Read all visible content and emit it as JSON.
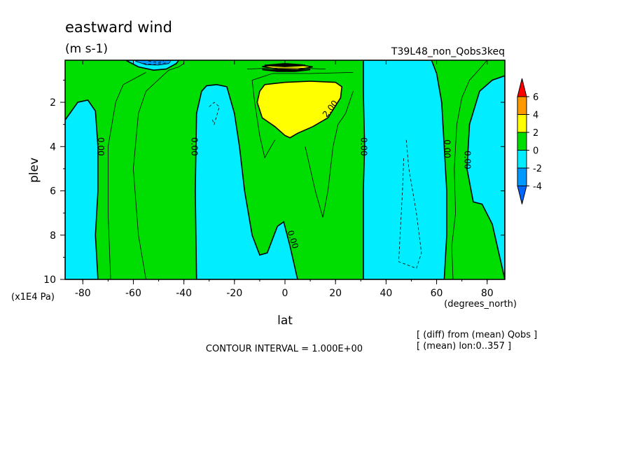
{
  "chart_data": {
    "type": "contour",
    "title": "eastward wind",
    "units": "(m s-1)",
    "run_label": "T39L48_non_Qobs3keq",
    "xlabel": "lat",
    "ylabel": "plev",
    "x_units": "(degrees_north)",
    "y_units": "(x1E4 Pa)",
    "xlim": [
      -87,
      87
    ],
    "ylim": [
      10,
      0.1
    ],
    "x_ticks": [
      -80,
      -60,
      -40,
      -20,
      0,
      20,
      40,
      60,
      80
    ],
    "x_tick_labels": [
      "-80",
      "-60",
      "-40",
      "-20",
      "0",
      "20",
      "40",
      "60",
      "80"
    ],
    "y_ticks": [
      2,
      4,
      6,
      8,
      10
    ],
    "y_tick_labels": [
      "2",
      "4",
      "6",
      "8",
      "10"
    ],
    "contour_interval_text": "CONTOUR INTERVAL = 1.000E+00",
    "notes": [
      "[ (diff) from (mean) Qobs ]",
      "[ (mean) lon:0..357 ]"
    ],
    "colorbar": {
      "levels": [
        -4,
        -2,
        0,
        2,
        4,
        6
      ],
      "labels": [
        "6",
        "4",
        "2",
        "0",
        "-2",
        "-4"
      ],
      "colors": [
        "#ff0000",
        "#ff9900",
        "#ffff00",
        "#00dd00",
        "#00eeff",
        "#0099ff",
        "#0066ff"
      ]
    },
    "contour_labels": [
      "0.00",
      "0.00",
      "0.00",
      "0.00",
      "2.00",
      "0.00",
      "0.00"
    ],
    "regions": [
      {
        "level": "green",
        "color": "#00dd00",
        "points": [
          [
            -87,
            0.1
          ],
          [
            87,
            0.1
          ],
          [
            87,
            10
          ],
          [
            -87,
            10
          ]
        ]
      },
      {
        "level": "cyan",
        "color": "#00eeff",
        "points": [
          [
            -87,
            2.8
          ],
          [
            -82,
            2
          ],
          [
            -78,
            1.9
          ],
          [
            -75,
            2.4
          ],
          [
            -74,
            4
          ],
          [
            -74,
            6
          ],
          [
            -75,
            8
          ],
          [
            -74,
            10
          ],
          [
            -87,
            10
          ]
        ]
      },
      {
        "level": "cyan",
        "color": "#00eeff",
        "points": [
          [
            -35,
            10
          ],
          [
            -35.5,
            6
          ],
          [
            -35,
            2.5
          ],
          [
            -33,
            1.5
          ],
          [
            -31,
            1.25
          ],
          [
            -27,
            1.2
          ],
          [
            -23,
            1.3
          ],
          [
            -20,
            2.5
          ],
          [
            -18,
            4
          ],
          [
            -16,
            6
          ],
          [
            -13,
            8
          ],
          [
            -10,
            8.9
          ],
          [
            -7,
            8.8
          ],
          [
            -3,
            7.6
          ],
          [
            -0.5,
            7.4
          ],
          [
            2,
            8.5
          ],
          [
            5,
            10
          ]
        ]
      },
      {
        "level": "cyan",
        "color": "#00eeff",
        "points": [
          [
            31,
            10
          ],
          [
            31,
            6
          ],
          [
            31.5,
            4
          ],
          [
            31,
            1.5
          ],
          [
            31,
            0.1
          ],
          [
            58,
            0.1
          ],
          [
            60,
            0.7
          ],
          [
            62,
            2
          ],
          [
            63,
            4
          ],
          [
            64,
            6
          ],
          [
            64,
            8
          ],
          [
            63,
            10
          ]
        ]
      },
      {
        "level": "cyan",
        "color": "#00eeff",
        "points": [
          [
            87,
            0.8
          ],
          [
            82,
            1
          ],
          [
            77,
            1.5
          ],
          [
            73,
            3
          ],
          [
            72,
            5
          ],
          [
            74.5,
            6.5
          ],
          [
            78,
            6.6
          ],
          [
            82,
            7.5
          ],
          [
            85,
            9
          ],
          [
            87,
            10
          ]
        ]
      },
      {
        "level": "yellow",
        "color": "#ffff00",
        "points": [
          [
            -11,
            2
          ],
          [
            -10,
            1.5
          ],
          [
            -8,
            1.2
          ],
          [
            0,
            1.1
          ],
          [
            10,
            1.05
          ],
          [
            20,
            1.1
          ],
          [
            22.5,
            1.3
          ],
          [
            22,
            1.8
          ],
          [
            17,
            2.7
          ],
          [
            11,
            3.1
          ],
          [
            5,
            3.4
          ],
          [
            2,
            3.6
          ],
          [
            0,
            3.5
          ],
          [
            -4,
            3.1
          ],
          [
            -9,
            2.7
          ]
        ]
      },
      {
        "level": "cyan",
        "color": "#00eeff",
        "points": [
          [
            -63,
            0.1
          ],
          [
            -58,
            0.4
          ],
          [
            -52,
            0.55
          ],
          [
            -47,
            0.5
          ],
          [
            -43,
            0.25
          ],
          [
            -42,
            0.1
          ]
        ]
      },
      {
        "level": "blue",
        "color": "#0099ff",
        "points": [
          [
            -59,
            0.15
          ],
          [
            -55,
            0.3
          ],
          [
            -50,
            0.32
          ],
          [
            -46,
            0.25
          ],
          [
            -45,
            0.1
          ],
          [
            -58,
            0.1
          ]
        ]
      },
      {
        "level": "yellow",
        "color": "#ffff00",
        "points": [
          [
            -9,
            0.38
          ],
          [
            -3,
            0.3
          ],
          [
            5,
            0.3
          ],
          [
            11,
            0.4
          ],
          [
            5,
            0.52
          ],
          [
            -3,
            0.5
          ]
        ]
      },
      {
        "level": "orange",
        "color": "#ff9900",
        "points": [
          [
            -6,
            0.3
          ],
          [
            0,
            0.24
          ],
          [
            7,
            0.3
          ],
          [
            0,
            0.36
          ]
        ]
      }
    ],
    "solid_lines": [
      [
        [
          -69,
          10
        ],
        [
          -70,
          7
        ],
        [
          -70,
          4
        ],
        [
          -67,
          2
        ],
        [
          -64,
          1.2
        ],
        [
          -55,
          0.65
        ]
      ],
      [
        [
          -55,
          10
        ],
        [
          -58,
          8
        ],
        [
          -60,
          5
        ],
        [
          -58,
          2.5
        ],
        [
          -55,
          1.5
        ],
        [
          -46,
          0.55
        ],
        [
          -42,
          0.4
        ],
        [
          -40,
          0.25
        ]
      ],
      [
        [
          -13,
          1
        ],
        [
          -12,
          2
        ],
        [
          -10,
          3.5
        ],
        [
          -8,
          4.5
        ],
        [
          -4,
          3.7
        ]
      ],
      [
        [
          -13,
          1
        ],
        [
          -5,
          0.7
        ],
        [
          10,
          0.7
        ],
        [
          27,
          0.65
        ]
      ],
      [
        [
          8,
          4
        ],
        [
          12,
          6
        ],
        [
          15,
          7.2
        ],
        [
          17,
          6
        ],
        [
          19,
          4
        ],
        [
          21,
          3
        ],
        [
          24,
          2.5
        ],
        [
          27,
          1.5
        ]
      ],
      [
        [
          -15,
          0.5
        ],
        [
          -5,
          0.45
        ],
        [
          5,
          0.45
        ],
        [
          16,
          0.5
        ]
      ],
      [
        [
          80,
          0.1
        ],
        [
          77,
          0.5
        ],
        [
          73,
          1
        ],
        [
          70,
          1.8
        ],
        [
          68,
          3
        ],
        [
          67,
          5
        ],
        [
          67.5,
          7
        ],
        [
          66,
          8.5
        ],
        [
          66.5,
          10
        ]
      ]
    ],
    "bold_lines": [
      [
        [
          -9,
          0.52
        ],
        [
          -2,
          0.55
        ],
        [
          5,
          0.55
        ],
        [
          10,
          0.52
        ],
        [
          4,
          0.6
        ],
        [
          -3,
          0.6
        ]
      ],
      [
        [
          -8,
          0.33
        ],
        [
          0,
          0.28
        ],
        [
          8,
          0.33
        ],
        [
          0,
          0.38
        ]
      ]
    ],
    "dashed_lines": [
      [
        [
          -30,
          2.2
        ],
        [
          -28,
          2.0
        ],
        [
          -26,
          2.2
        ],
        [
          -27,
          2.6
        ],
        [
          -28,
          3.0
        ],
        [
          -29,
          2.7
        ]
      ],
      [
        [
          48,
          3.7
        ],
        [
          49,
          5
        ],
        [
          52,
          7
        ],
        [
          54,
          8.8
        ],
        [
          52,
          9.5
        ],
        [
          45,
          9.2
        ],
        [
          46.5,
          6
        ],
        [
          47,
          4.5
        ]
      ],
      [
        [
          -56,
          0.25
        ],
        [
          -52,
          0.3
        ],
        [
          -47,
          0.22
        ]
      ],
      [
        [
          -54,
          0.15
        ],
        [
          -50,
          0.2
        ],
        [
          -48,
          0.14
        ]
      ]
    ]
  }
}
